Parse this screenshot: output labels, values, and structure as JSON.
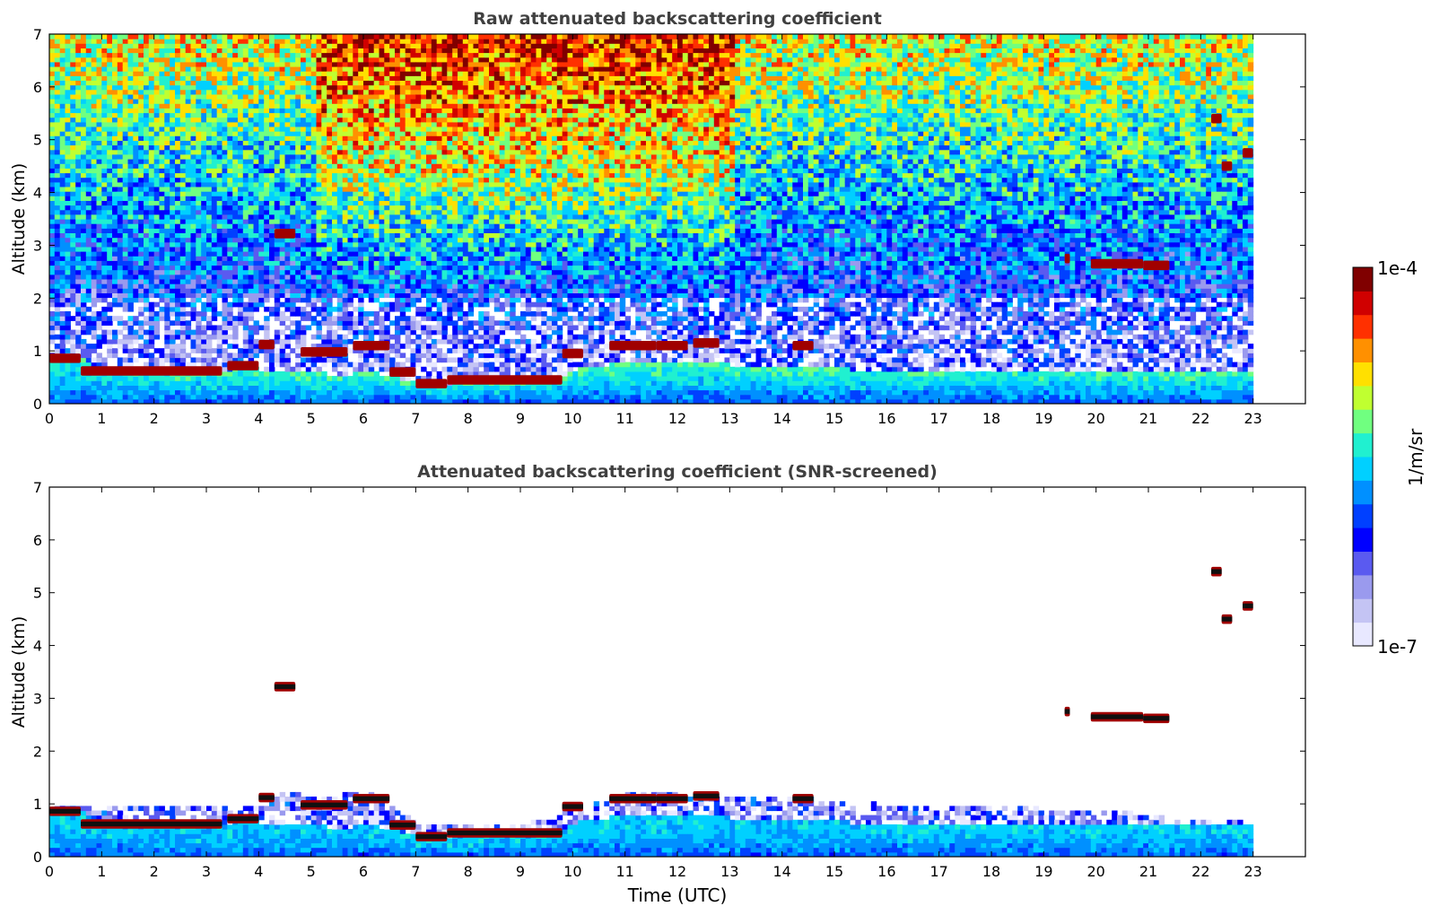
{
  "chart_data": [
    {
      "type": "heatmap",
      "title": "Raw attenuated backscattering coefficient",
      "xlabel": "",
      "ylabel": "Altitude (km)",
      "xlim": [
        0,
        24
      ],
      "ylim": [
        0,
        7
      ],
      "x_ticks": [
        0,
        1,
        2,
        3,
        4,
        5,
        6,
        7,
        8,
        9,
        10,
        11,
        12,
        13,
        14,
        15,
        16,
        17,
        18,
        19,
        20,
        21,
        22,
        23
      ],
      "y_ticks": [
        0,
        1,
        2,
        3,
        4,
        5,
        6,
        7
      ],
      "data_end_time": 23,
      "noise_background": {
        "description": "noisy molecular signal; log10 backscatter rising with altitude, higher between 5-13 UTC",
        "log10_at_0km": -6.6,
        "log10_at_7km": -4.9,
        "enhanced_period": [
          5.0,
          13.0
        ],
        "enhanced_offset": 0.55
      },
      "boundary_layer": {
        "description": "aerosol layer top (km) vs time (UTC)",
        "times": [
          0,
          0.6,
          0.8,
          2.0,
          3.0,
          3.3,
          3.7,
          4.0,
          4.3,
          5.0,
          5.5,
          6.0,
          6.4,
          6.8,
          7.2,
          7.6,
          8.0,
          8.5,
          9.0,
          9.5,
          9.8,
          10.0,
          10.6,
          11.0,
          11.5,
          12.0,
          12.5,
          12.8,
          13.0,
          16.0,
          19.0,
          21.0,
          22.0,
          22.8,
          23.0
        ],
        "heights": [
          0.85,
          0.85,
          0.68,
          0.62,
          0.58,
          0.55,
          0.75,
          0.6,
          0.55,
          0.55,
          0.5,
          0.55,
          0.5,
          0.4,
          0.35,
          0.35,
          0.4,
          0.45,
          0.45,
          0.45,
          0.5,
          0.6,
          0.7,
          0.72,
          0.7,
          0.72,
          0.75,
          0.75,
          0.65,
          0.6,
          0.6,
          0.55,
          0.55,
          0.55,
          0.55
        ]
      },
      "cloud_layers": [
        {
          "t0": 0.0,
          "t1": 0.6,
          "z": 0.86
        },
        {
          "t0": 0.6,
          "t1": 3.3,
          "z": 0.62
        },
        {
          "t0": 3.4,
          "t1": 4.0,
          "z": 0.72
        },
        {
          "t0": 4.0,
          "t1": 4.3,
          "z": 1.12
        },
        {
          "t0": 4.3,
          "t1": 4.7,
          "z": 3.22
        },
        {
          "t0": 4.8,
          "t1": 5.7,
          "z": 0.98
        },
        {
          "t0": 5.8,
          "t1": 6.5,
          "z": 1.1
        },
        {
          "t0": 6.5,
          "t1": 7.0,
          "z": 0.6
        },
        {
          "t0": 7.0,
          "t1": 7.6,
          "z": 0.38
        },
        {
          "t0": 7.6,
          "t1": 9.8,
          "z": 0.45
        },
        {
          "t0": 9.8,
          "t1": 10.2,
          "z": 0.95
        },
        {
          "t0": 10.7,
          "t1": 11.6,
          "z": 1.1
        },
        {
          "t0": 11.6,
          "t1": 12.2,
          "z": 1.1
        },
        {
          "t0": 12.3,
          "t1": 12.8,
          "z": 1.15
        },
        {
          "t0": 14.2,
          "t1": 14.6,
          "z": 1.1
        },
        {
          "t0": 19.4,
          "t1": 19.5,
          "z": 2.75
        },
        {
          "t0": 19.9,
          "t1": 20.9,
          "z": 2.65
        },
        {
          "t0": 20.9,
          "t1": 21.4,
          "z": 2.62
        },
        {
          "t0": 22.2,
          "t1": 22.4,
          "z": 5.4
        },
        {
          "t0": 22.4,
          "t1": 22.6,
          "z": 4.5
        },
        {
          "t0": 22.8,
          "t1": 23.0,
          "z": 4.75
        }
      ]
    },
    {
      "type": "heatmap",
      "title": "Attenuated backscattering coefficient (SNR-screened)",
      "xlabel": "Time (UTC)",
      "ylabel": "Altitude (km)",
      "xlim": [
        0,
        24
      ],
      "ylim": [
        0,
        7
      ],
      "x_ticks": [
        0,
        1,
        2,
        3,
        4,
        5,
        6,
        7,
        8,
        9,
        10,
        11,
        12,
        13,
        14,
        15,
        16,
        17,
        18,
        19,
        20,
        21,
        22,
        23
      ],
      "y_ticks": [
        0,
        1,
        2,
        3,
        4,
        5,
        6,
        7
      ],
      "data_end_time": 23,
      "screening": "pixels with low signal-to-noise ratio removed (white); same layers as raw panel",
      "screened_top": {
        "times": [
          0,
          4.0,
          4.5,
          5.0,
          6.0,
          7.0,
          8.0,
          9.0,
          10.0,
          11.0,
          12.0,
          13.0,
          14.0,
          15.0,
          16.0,
          18.0,
          20.0,
          21.0,
          22.0,
          23.0
        ],
        "heights": [
          0.95,
          0.9,
          1.2,
          1.05,
          1.2,
          0.6,
          0.55,
          0.55,
          0.9,
          1.15,
          1.15,
          1.05,
          1.1,
          1.0,
          0.95,
          0.9,
          0.85,
          0.75,
          0.65,
          0.6
        ]
      }
    }
  ],
  "colorbar": {
    "label": "1/m/sr",
    "max_label": "1e-4",
    "min_label": "1e-7",
    "log10_min": -7,
    "log10_max": -4,
    "colormap": "jet",
    "colors": [
      "#e8e8ff",
      "#c4c4f4",
      "#9a9aee",
      "#5a5af0",
      "#0000ff",
      "#0040ff",
      "#0090ff",
      "#00d0ff",
      "#20f0d0",
      "#70ff80",
      "#c0ff30",
      "#ffe000",
      "#ff9000",
      "#ff3000",
      "#d00000",
      "#800000"
    ]
  }
}
